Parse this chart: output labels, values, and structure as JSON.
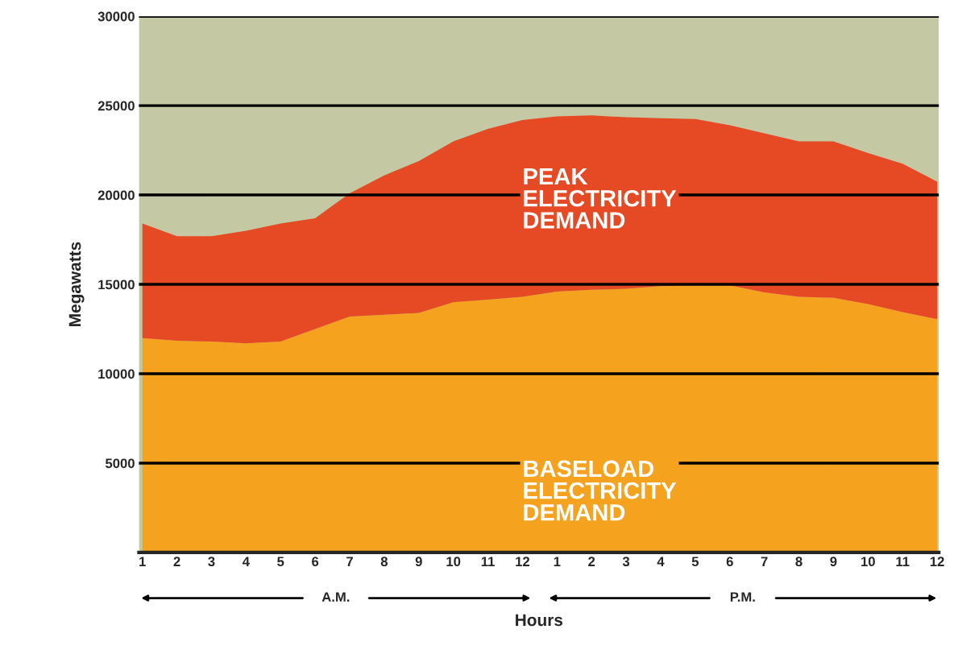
{
  "chart_data": {
    "type": "area",
    "stacked": true,
    "xlabel": "Hours",
    "ylabel": "Megawatts",
    "categories": [
      "1",
      "2",
      "3",
      "4",
      "5",
      "6",
      "7",
      "8",
      "9",
      "10",
      "11",
      "12",
      "1",
      "2",
      "3",
      "4",
      "5",
      "6",
      "7",
      "8",
      "9",
      "10",
      "11",
      "12"
    ],
    "series": [
      {
        "name": "BASELOAD\nELECTRICITY\nDEMAND",
        "color": "#f5a21e",
        "values": [
          12000,
          11850,
          11800,
          11700,
          11800,
          12500,
          13200,
          13300,
          13400,
          14000,
          14150,
          14300,
          14600,
          14700,
          14750,
          14900,
          14950,
          14950,
          14550,
          14300,
          14250,
          13900,
          13450,
          13050
        ]
      },
      {
        "name": "PEAK\nELECTRICITY\nDEMAND",
        "color": "#e64a25",
        "values": [
          6400,
          5850,
          5900,
          6300,
          6600,
          6200,
          6900,
          7800,
          8500,
          9000,
          9550,
          9900,
          9800,
          9750,
          9600,
          9400,
          9300,
          8950,
          8900,
          8700,
          8750,
          8450,
          8300,
          7700
        ]
      }
    ],
    "bands": [
      {
        "axis": "y",
        "from": 0,
        "to": 30000,
        "color": "#c5c9a3"
      }
    ],
    "ylim": [
      0,
      30000
    ],
    "yticks": [
      5000,
      10000,
      15000,
      20000,
      25000,
      30000
    ],
    "grid": "y",
    "legend": false,
    "annotations": [
      "A.M.",
      "P.M."
    ]
  }
}
